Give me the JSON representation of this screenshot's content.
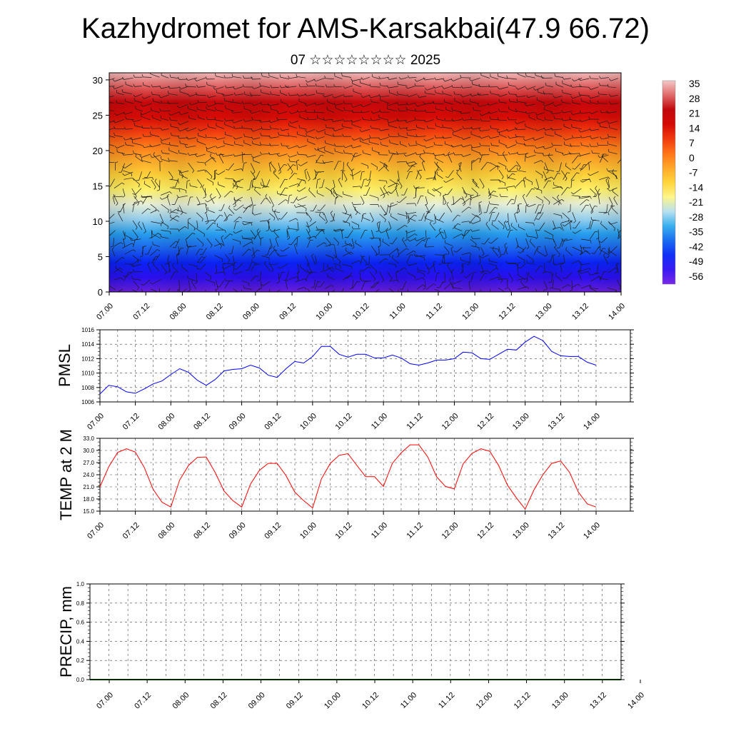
{
  "header": {
    "title": "Kazhydromet for AMS-Karsakbai(47.9 66.72)",
    "subtitle": "07 ☆☆☆☆☆☆☆☆ 2025"
  },
  "chart_data": [
    {
      "type": "heatmap",
      "name": "temperature-wind-cross-section",
      "xlabel": "",
      "ylabel": "",
      "x_tick_labels": [
        "07.00",
        "07.12",
        "08.00",
        "08.12",
        "09.00",
        "09.12",
        "10.00",
        "10.12",
        "11.00",
        "11.12",
        "12.00",
        "12.12",
        "13.00",
        "13.12",
        "14.00"
      ],
      "y_ticks": [
        0,
        5,
        10,
        15,
        20,
        25,
        30
      ],
      "ylim": [
        0,
        31
      ],
      "colorbar_labels": [
        "35",
        "28",
        "21",
        "14",
        "7",
        "0",
        "-7",
        "-14",
        "-21",
        "-28",
        "-35",
        "-42",
        "-49",
        "-56"
      ],
      "colorbar_range": [
        -60,
        38
      ],
      "colors": [
        "#6a1fd6",
        "#2a0ff0",
        "#0a22f5",
        "#1c66f0",
        "#28a0ee",
        "#98d0ee",
        "#e8f0d8",
        "#fff26a",
        "#ffd23a",
        "#ffaa2a",
        "#ff7a18",
        "#f23a0e",
        "#d80a06",
        "#c8080c",
        "#e05a5a",
        "#f0b8b8"
      ],
      "overlay": "wind barbs"
    },
    {
      "type": "line",
      "name": "pmsl",
      "ylabel": "PMSL",
      "ylim": [
        1006,
        1016
      ],
      "y_tick_labels": [
        "1006",
        "1008",
        "1010",
        "1012",
        "1014",
        "1016"
      ],
      "x_tick_labels": [
        "07.00",
        "07.12",
        "08.00",
        "08.12",
        "09.00",
        "09.12",
        "10.00",
        "10.12",
        "11.00",
        "11.12",
        "12.00",
        "12.12",
        "13.00",
        "13.12",
        "14.00"
      ],
      "x_hours": [
        0,
        3,
        6,
        9,
        12,
        15,
        18,
        21,
        24,
        27,
        30,
        33,
        36,
        39,
        42,
        45,
        48,
        51,
        54,
        57,
        60,
        63,
        66,
        69,
        72,
        75,
        78,
        81,
        84,
        87,
        90,
        93,
        96,
        99,
        102,
        105,
        108,
        111,
        114,
        117,
        120,
        123,
        126,
        129,
        132,
        135,
        138,
        141,
        144,
        147,
        150,
        153,
        156,
        159,
        162,
        165,
        168
      ],
      "series": [
        {
          "color": "#0000ff",
          "values": [
            1007.1,
            1008.3,
            1008.1,
            1007.4,
            1007.2,
            1007.8,
            1008.5,
            1008.9,
            1009.8,
            1010.6,
            1010.1,
            1009.0,
            1008.3,
            1009.1,
            1010.3,
            1010.5,
            1010.6,
            1011.1,
            1010.7,
            1009.7,
            1009.4,
            1010.6,
            1011.6,
            1011.4,
            1012.3,
            1013.7,
            1013.7,
            1012.6,
            1012.2,
            1012.6,
            1012.6,
            1012.1,
            1012.1,
            1012.5,
            1012.1,
            1011.3,
            1011.1,
            1011.4,
            1011.8,
            1011.8,
            1012.0,
            1012.9,
            1012.8,
            1012.0,
            1011.9,
            1012.6,
            1013.3,
            1013.2,
            1014.3,
            1015.1,
            1014.5,
            1013.0,
            1012.4,
            1012.3,
            1012.3,
            1011.5,
            1011.1
          ]
        }
      ]
    },
    {
      "type": "line",
      "name": "temp-2m",
      "ylabel": "TEMP at 2 M",
      "ylim": [
        15,
        33
      ],
      "y_tick_labels": [
        "15.0",
        "18.0",
        "21.0",
        "24.0",
        "27.0",
        "30.0",
        "33.0"
      ],
      "x_tick_labels": [
        "07.00",
        "07.12",
        "08.00",
        "08.12",
        "09.00",
        "09.12",
        "10.00",
        "10.12",
        "11.00",
        "11.12",
        "12.00",
        "12.12",
        "13.00",
        "13.12",
        "14.00"
      ],
      "x_hours": [
        0,
        3,
        6,
        9,
        12,
        15,
        18,
        21,
        24,
        27,
        30,
        33,
        36,
        39,
        42,
        45,
        48,
        51,
        54,
        57,
        60,
        63,
        66,
        69,
        72,
        75,
        78,
        81,
        84,
        87,
        90,
        93,
        96,
        99,
        102,
        105,
        108,
        111,
        114,
        117,
        120,
        123,
        126,
        129,
        132,
        135,
        138,
        141,
        144,
        147,
        150,
        153,
        156,
        159,
        162,
        165,
        168
      ],
      "series": [
        {
          "color": "#ff0000",
          "values": [
            21.0,
            26.0,
            29.5,
            30.4,
            29.6,
            25.8,
            20.4,
            17.2,
            16.0,
            22.7,
            26.3,
            28.3,
            28.4,
            24.6,
            20.0,
            17.6,
            16.0,
            21.7,
            25.1,
            26.8,
            26.8,
            23.8,
            19.7,
            17.6,
            15.8,
            23.0,
            26.8,
            28.8,
            29.2,
            26.3,
            23.5,
            23.5,
            21.1,
            26.8,
            29.4,
            31.4,
            31.4,
            28.4,
            23.5,
            21.1,
            20.5,
            26.7,
            29.3,
            30.4,
            29.8,
            26.3,
            21.4,
            18.3,
            15.5,
            20.3,
            24.0,
            26.8,
            27.4,
            24.6,
            19.7,
            16.8,
            16.0
          ]
        }
      ]
    },
    {
      "type": "bar",
      "name": "precip",
      "ylabel": "PRECIP, mm",
      "ylim": [
        0,
        1
      ],
      "y_tick_labels": [
        "0.0",
        "0.2",
        "0.4",
        "0.6",
        "0.8",
        "1.0"
      ],
      "x_tick_labels": [
        "07.00",
        "07.12",
        "08.00",
        "08.12",
        "09.00",
        "09.12",
        "10.00",
        "10.12",
        "11.00",
        "11.12",
        "12.00",
        "12.12",
        "13.00",
        "13.12",
        "14.00"
      ],
      "series": [
        {
          "color": "#005a00",
          "values": []
        }
      ]
    }
  ]
}
